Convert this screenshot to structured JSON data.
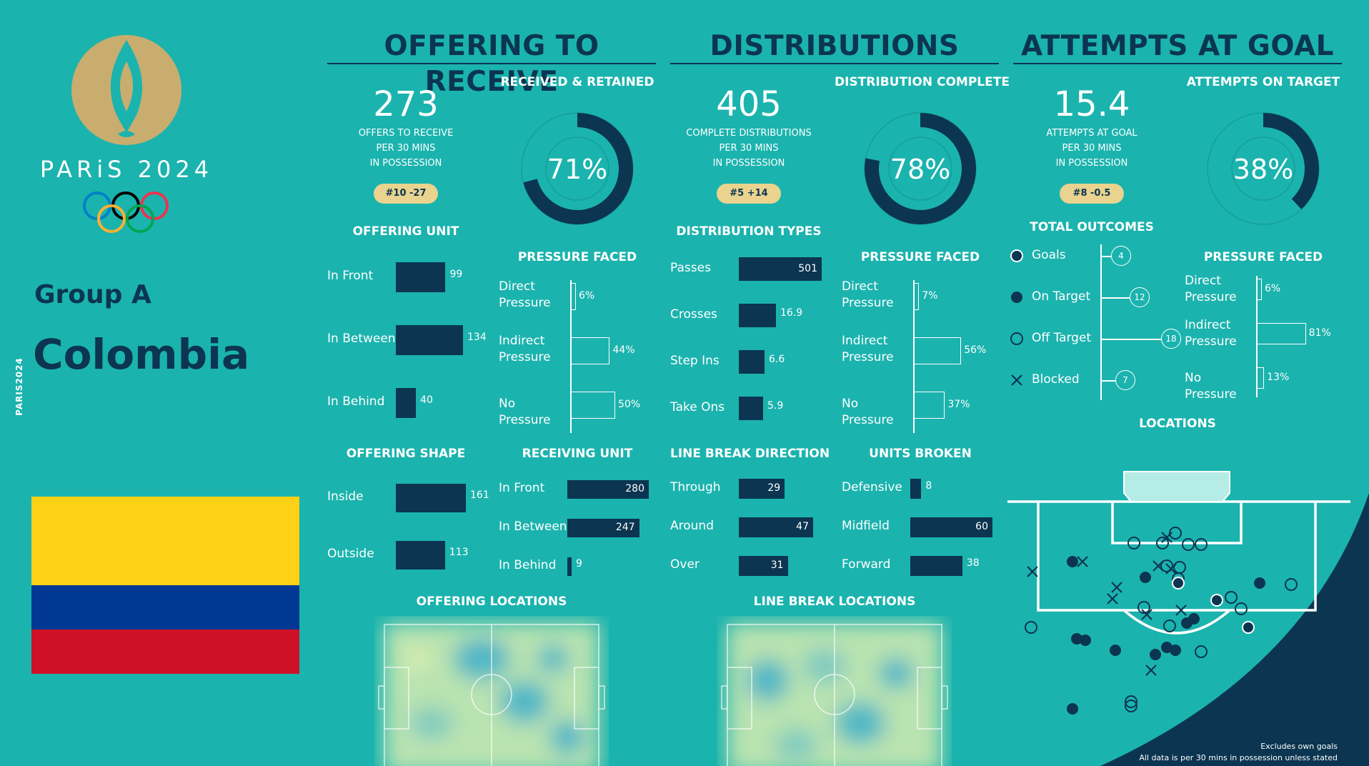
{
  "brand": {
    "event": "PARiS 2024",
    "vertical": "PARIS2024"
  },
  "team": {
    "group": "Group A",
    "name": "Colombia",
    "flag_colors": [
      "#fcd116",
      "#003893",
      "#ce1126"
    ]
  },
  "colors": {
    "background": "#1bb3ae",
    "dark": "#0b3550",
    "gold": "#c9ad6e",
    "pill": "#e9d38e"
  },
  "offering": {
    "title": "OFFERING TO RECEIVE",
    "big": "273",
    "sub": [
      "OFFERS TO RECEIVE",
      "PER 30 MINS",
      "IN POSSESSION"
    ],
    "rank": "#10 -27",
    "donut_title": "RECEIVED & RETAINED",
    "donut_value": "71%",
    "donut_pct": 71,
    "unit_title": "OFFERING UNIT",
    "unit": [
      {
        "label": "In Front",
        "value": "99",
        "num": 99
      },
      {
        "label": "In Between",
        "value": "134",
        "num": 134
      },
      {
        "label": "In Behind",
        "value": "40",
        "num": 40
      }
    ],
    "pressure_title": "PRESSURE FACED",
    "pressure": [
      {
        "label": "Direct Pressure",
        "value": "6%",
        "num": 6
      },
      {
        "label": "Indirect Pressure",
        "value": "44%",
        "num": 44
      },
      {
        "label": "No Pressure",
        "value": "50%",
        "num": 50
      }
    ],
    "shape_title": "OFFERING SHAPE",
    "shape": [
      {
        "label": "Inside",
        "value": "161",
        "num": 161
      },
      {
        "label": "Outside",
        "value": "113",
        "num": 113
      }
    ],
    "receiving_title": "RECEIVING UNIT",
    "receiving": [
      {
        "label": "In Front",
        "value": "280",
        "num": 280
      },
      {
        "label": "In Between",
        "value": "247",
        "num": 247
      },
      {
        "label": "In Behind",
        "value": "9",
        "num": 9
      }
    ],
    "locations_title": "OFFERING LOCATIONS"
  },
  "distributions": {
    "title": "DISTRIBUTIONS",
    "big": "405",
    "sub": [
      "COMPLETE DISTRIBUTIONS",
      "PER 30 MINS",
      "IN POSSESSION"
    ],
    "rank": "#5 +14",
    "donut_title": "DISTRIBUTION COMPLETE",
    "donut_value": "78%",
    "donut_pct": 78,
    "types_title": "DISTRIBUTION TYPES",
    "types": [
      {
        "label": "Passes",
        "value": "501",
        "num": 501
      },
      {
        "label": "Crosses",
        "value": "16.9",
        "num": 16.9
      },
      {
        "label": "Step Ins",
        "value": "6.6",
        "num": 6.6
      },
      {
        "label": "Take Ons",
        "value": "5.9",
        "num": 5.9
      }
    ],
    "pressure_title": "PRESSURE FACED",
    "pressure": [
      {
        "label": "Direct Pressure",
        "value": "7%",
        "num": 7
      },
      {
        "label": "Indirect Pressure",
        "value": "56%",
        "num": 56
      },
      {
        "label": "No Pressure",
        "value": "37%",
        "num": 37
      }
    ],
    "direction_title": "LINE BREAK DIRECTION",
    "direction": [
      {
        "label": "Through",
        "value": "29",
        "num": 29
      },
      {
        "label": "Around",
        "value": "47",
        "num": 47
      },
      {
        "label": "Over",
        "value": "31",
        "num": 31
      }
    ],
    "units_title": "UNITS BROKEN",
    "units": [
      {
        "label": "Defensive",
        "value": "8",
        "num": 8
      },
      {
        "label": "Midfield",
        "value": "60",
        "num": 60
      },
      {
        "label": "Forward",
        "value": "38",
        "num": 38
      }
    ],
    "locations_title": "LINE BREAK LOCATIONS"
  },
  "attempts": {
    "title": "ATTEMPTS AT GOAL",
    "big": "15.4",
    "sub": [
      "ATTEMPTS AT GOAL",
      "PER 30 MINS",
      "IN POSSESSION"
    ],
    "rank": "#8 -0.5",
    "donut_title": "ATTEMPTS ON TARGET",
    "donut_value": "38%",
    "donut_pct": 38,
    "outcomes_title": "TOTAL OUTCOMES",
    "outcomes": [
      {
        "label": "Goals",
        "value": "4",
        "icon": "goal-icon"
      },
      {
        "label": "On Target",
        "value": "12",
        "icon": "on-target-icon"
      },
      {
        "label": "Off Target",
        "value": "18",
        "icon": "off-target-icon"
      },
      {
        "label": "Blocked",
        "value": "7",
        "icon": "blocked-icon"
      }
    ],
    "pressure_title": "PRESSURE FACED",
    "pressure": [
      {
        "label": "Direct Pressure",
        "value": "6%",
        "num": 6
      },
      {
        "label": "Indirect Pressure",
        "value": "81%",
        "num": 81
      },
      {
        "label": "No Pressure",
        "value": "13%",
        "num": 13
      }
    ],
    "locations_title": "LOCATIONS"
  },
  "footnotes": [
    "Excludes own goals",
    "All data is per 30 mins in possession unless stated"
  ]
}
